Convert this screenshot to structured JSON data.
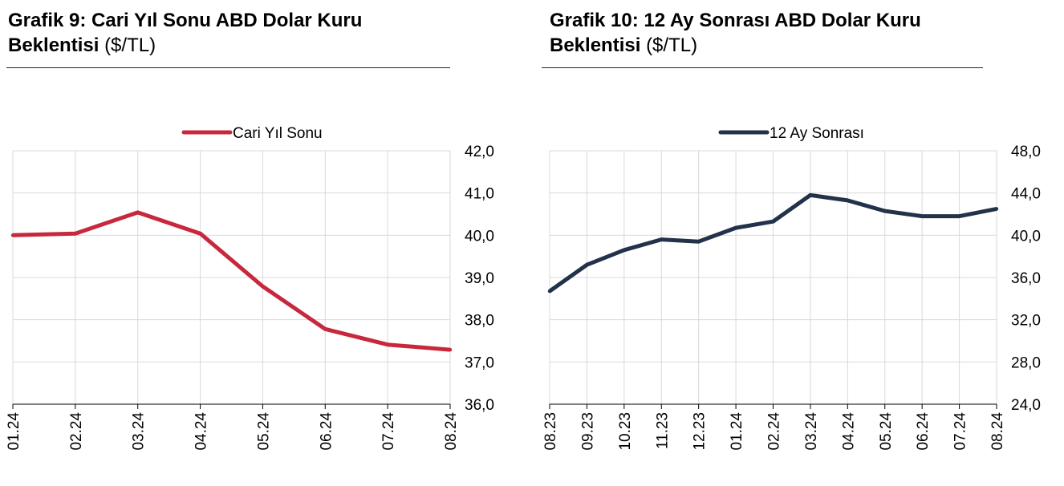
{
  "charts": [
    {
      "title_bold": "Grafik 9: Cari Yıl Sonu ABD Dolar Kuru",
      "title_bold2": "Beklentisi",
      "title_unit": "($/TL)"
    },
    {
      "title_bold": "Grafik 10: 12 Ay Sonrası ABD Dolar Kuru",
      "title_bold2": "Beklentisi",
      "title_unit": "($/TL)"
    }
  ],
  "chart_data": [
    {
      "type": "line",
      "title": "Grafik 9: Cari Yıl Sonu ABD Dolar Kuru Beklentisi ($/TL)",
      "categories": [
        "01.24",
        "02.24",
        "03.24",
        "04.24",
        "05.24",
        "06.24",
        "07.24",
        "08.24"
      ],
      "series": [
        {
          "name": "Cari Yıl Sonu",
          "color": "#c8283c",
          "values": [
            40.0,
            40.04,
            40.54,
            40.04,
            38.79,
            37.78,
            37.41,
            37.29
          ]
        }
      ],
      "ylim": [
        36.0,
        42.0
      ],
      "yticks": [
        "36,0",
        "37,0",
        "38,0",
        "39,0",
        "40,0",
        "41,0",
        "42,0"
      ],
      "y_axis_side": "right",
      "legend_position": "top-center",
      "grid": true
    },
    {
      "type": "line",
      "title": "Grafik 10: 12 Ay Sonrası ABD Dolar Kuru Beklentisi ($/TL)",
      "categories": [
        "08.23",
        "09.23",
        "10.23",
        "11.23",
        "12.23",
        "01.24",
        "02.24",
        "03.24",
        "04.24",
        "05.24",
        "06.24",
        "07.24",
        "08.24"
      ],
      "series": [
        {
          "name": "12 Ay Sonrası",
          "color": "#22324a",
          "values": [
            34.7,
            37.2,
            38.6,
            39.6,
            39.4,
            40.7,
            41.3,
            43.8,
            43.3,
            42.3,
            41.8,
            41.8,
            42.5
          ]
        }
      ],
      "ylim": [
        24.0,
        48.0
      ],
      "yticks": [
        "24,0",
        "28,0",
        "32,0",
        "36,0",
        "40,0",
        "44,0",
        "48,0"
      ],
      "y_axis_side": "right",
      "legend_position": "top-center",
      "grid": true
    }
  ]
}
